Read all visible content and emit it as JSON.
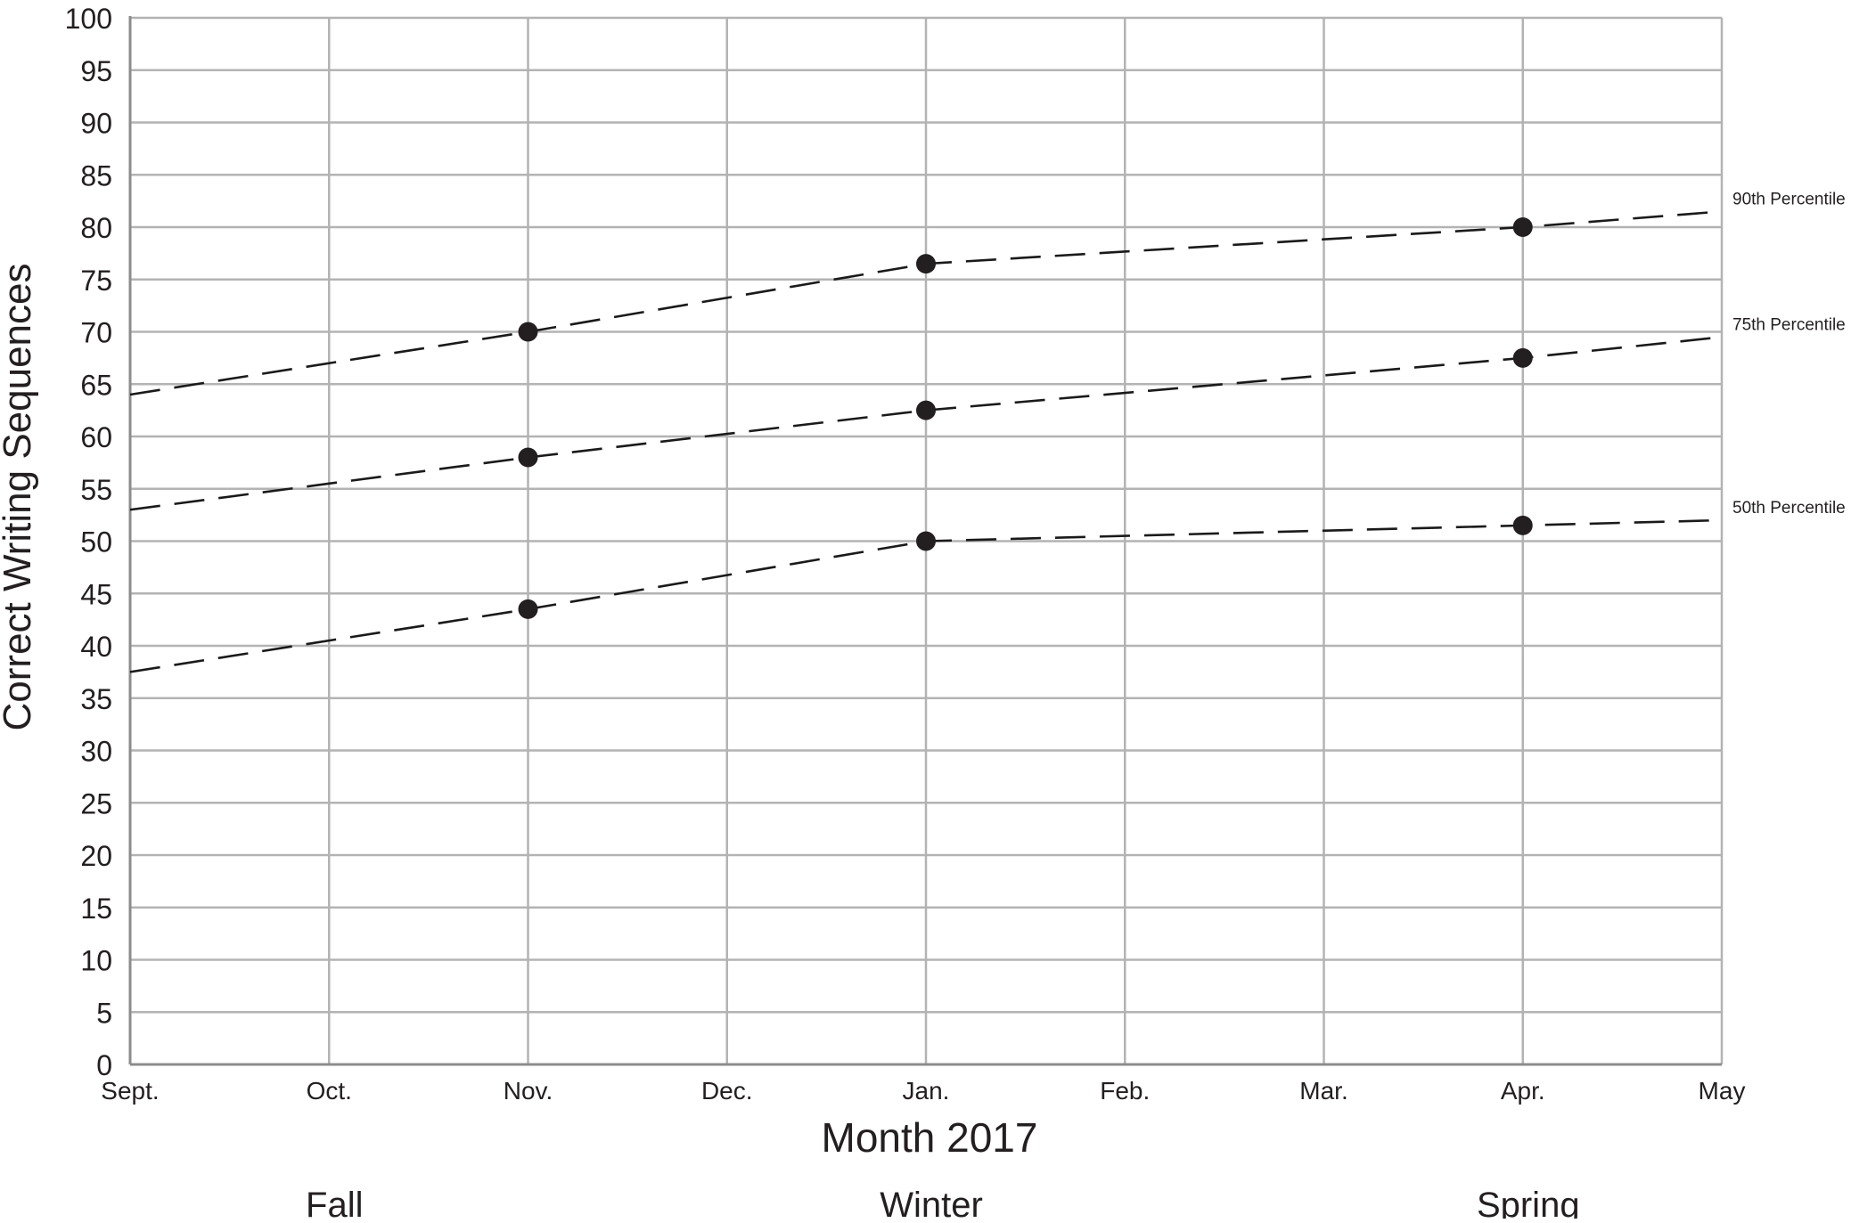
{
  "chart_data": {
    "type": "line",
    "title": "",
    "xlabel": "Month 2017",
    "ylabel": "Correct Writing Sequences",
    "categories": [
      "Sept.",
      "Oct.",
      "Nov.",
      "Dec.",
      "Jan.",
      "Feb.",
      "Mar.",
      "Apr.",
      "May"
    ],
    "seasons": [
      {
        "label": "Fall",
        "at": "Oct."
      },
      {
        "label": "Winter",
        "at": "Jan."
      },
      {
        "label": "Spring",
        "at": "Apr."
      }
    ],
    "ylim": [
      0,
      100
    ],
    "yticks": [
      0,
      5,
      10,
      15,
      20,
      25,
      30,
      35,
      40,
      45,
      50,
      55,
      60,
      65,
      70,
      75,
      80,
      85,
      90,
      95,
      100
    ],
    "grid": true,
    "series": [
      {
        "name": "90th Percentile",
        "line": [
          {
            "x": "Sept.",
            "y": 64
          },
          {
            "x": "Nov.",
            "y": 70
          },
          {
            "x": "Jan.",
            "y": 76.5
          },
          {
            "x": "Apr.",
            "y": 80
          },
          {
            "x": "May",
            "y": 81.5
          }
        ],
        "markers": [
          {
            "x": "Nov.",
            "y": 70
          },
          {
            "x": "Jan.",
            "y": 76.5
          },
          {
            "x": "Apr.",
            "y": 80
          }
        ],
        "style": "dashed"
      },
      {
        "name": "75th Percentile",
        "line": [
          {
            "x": "Sept.",
            "y": 53
          },
          {
            "x": "Nov.",
            "y": 58
          },
          {
            "x": "Jan.",
            "y": 62.5
          },
          {
            "x": "Apr.",
            "y": 67.5
          },
          {
            "x": "May",
            "y": 69.5
          }
        ],
        "markers": [
          {
            "x": "Nov.",
            "y": 58
          },
          {
            "x": "Jan.",
            "y": 62.5
          },
          {
            "x": "Apr.",
            "y": 67.5
          }
        ],
        "style": "dashed"
      },
      {
        "name": "50th Percentile",
        "line": [
          {
            "x": "Sept.",
            "y": 37.5
          },
          {
            "x": "Nov.",
            "y": 43.5
          },
          {
            "x": "Jan.",
            "y": 50
          },
          {
            "x": "Apr.",
            "y": 51.5
          },
          {
            "x": "May",
            "y": 52
          }
        ],
        "markers": [
          {
            "x": "Nov.",
            "y": 43.5
          },
          {
            "x": "Jan.",
            "y": 50
          },
          {
            "x": "Apr.",
            "y": 51.5
          }
        ],
        "style": "dashed"
      }
    ],
    "colors": {
      "grid": "#b3b3b3",
      "line": "#1a1a1a",
      "marker": "#231f20",
      "text": "#231f20"
    }
  }
}
